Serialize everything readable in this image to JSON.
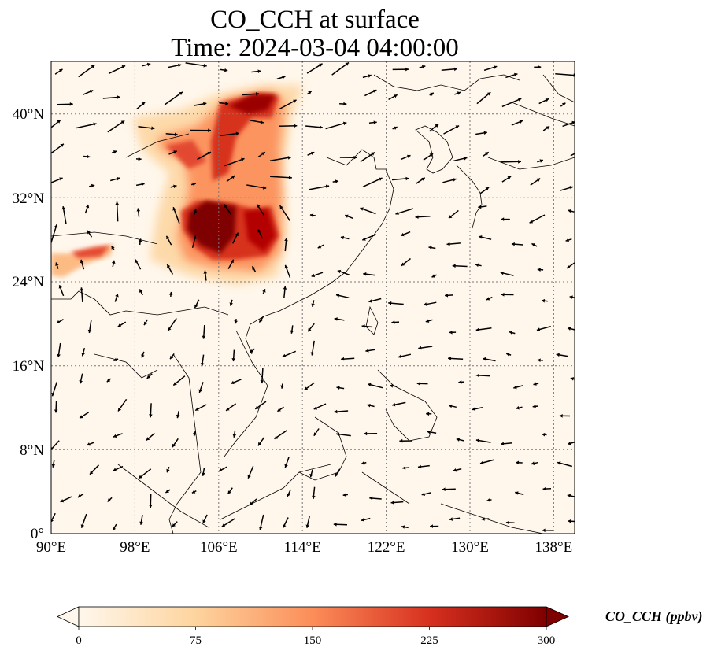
{
  "title": {
    "line1": "CO_CCH at surface",
    "line2": "Time: 2024-03-04 04:00:00"
  },
  "map_data": {
    "type": "heatmap",
    "variable": "CO_CCH",
    "level": "surface",
    "lon_range": [
      90,
      140
    ],
    "lat_range": [
      0,
      45
    ],
    "x_ticks": [
      "90°E",
      "98°E",
      "106°E",
      "114°E",
      "122°E",
      "130°E",
      "138°E"
    ],
    "x_tick_values": [
      90,
      98,
      106,
      114,
      122,
      130,
      138
    ],
    "y_ticks": [
      "0°",
      "8°N",
      "16°N",
      "24°N",
      "32°N",
      "40°N"
    ],
    "y_tick_values": [
      0,
      8,
      16,
      24,
      32,
      40
    ],
    "gridlines": true,
    "wind_vectors": true
  },
  "colorbar": {
    "label": "CO_CCH (ppbv)",
    "ticks": [
      "0",
      "75",
      "150",
      "225",
      "300"
    ],
    "tick_values": [
      0,
      75,
      150,
      225,
      300
    ],
    "range": [
      0,
      300
    ],
    "extend": "both",
    "colormap": "OrRd",
    "colors": [
      "#fff7ec",
      "#fdd49e",
      "#fc8d59",
      "#d7301f",
      "#7f0000"
    ]
  }
}
